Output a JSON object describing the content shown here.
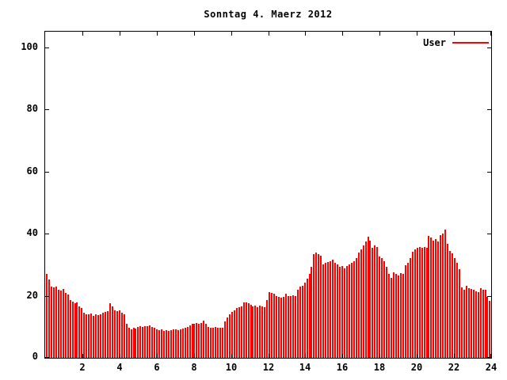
{
  "chart_data": {
    "type": "bar",
    "title": "Sonntag 4. Maerz 2012",
    "xlabel": "",
    "ylabel": "",
    "xlim": [
      0,
      24
    ],
    "ylim": [
      0,
      105
    ],
    "grid": false,
    "legend_position": "top-right",
    "background_color": "#ffffff",
    "axis_color": "#000000",
    "x_ticks": [
      2,
      4,
      6,
      8,
      10,
      12,
      14,
      16,
      18,
      20,
      22,
      24
    ],
    "x_tick_labels": [
      "2",
      "4",
      "6",
      "8",
      "10",
      "12",
      "14",
      "16",
      "18",
      "20",
      "22",
      "24"
    ],
    "y_ticks": [
      0,
      20,
      40,
      60,
      80,
      100
    ],
    "y_tick_labels": [
      "0",
      "20",
      "40",
      "60",
      "80",
      "100"
    ],
    "x_unit": "hour-of-day",
    "points_per_day": 190,
    "series": [
      {
        "name": "User",
        "color": "#ff0000",
        "values": [
          27.0,
          25.3,
          23.0,
          22.6,
          22.9,
          22.0,
          21.6,
          22.1,
          21.0,
          20.4,
          18.6,
          18.1,
          17.6,
          17.9,
          16.6,
          16.1,
          14.6,
          14.1,
          13.9,
          14.3,
          13.5,
          14.0,
          13.8,
          14.1,
          14.4,
          14.8,
          15.1,
          17.6,
          16.6,
          15.3,
          15.1,
          15.4,
          14.4,
          14.1,
          11.0,
          9.6,
          9.3,
          9.7,
          9.4,
          9.9,
          10.1,
          9.9,
          10.3,
          10.1,
          10.4,
          10.0,
          9.6,
          9.3,
          8.9,
          9.1,
          8.7,
          8.9,
          8.6,
          8.9,
          9.1,
          9.3,
          8.9,
          9.1,
          9.4,
          9.6,
          9.9,
          10.4,
          11.0,
          10.9,
          11.2,
          11.0,
          11.3,
          12.1,
          11.0,
          10.0,
          9.8,
          9.7,
          9.9,
          9.6,
          9.8,
          9.7,
          11.8,
          13.1,
          14.0,
          14.8,
          15.3,
          16.1,
          16.3,
          16.6,
          17.8,
          17.9,
          17.6,
          17.1,
          16.5,
          16.7,
          16.3,
          16.8,
          16.6,
          16.4,
          18.6,
          21.1,
          21.0,
          20.6,
          19.8,
          19.6,
          19.4,
          19.6,
          20.7,
          19.9,
          19.8,
          20.1,
          19.9,
          22.0,
          22.9,
          23.2,
          24.1,
          25.4,
          27.0,
          29.2,
          33.3,
          33.8,
          33.3,
          33.0,
          30.0,
          30.5,
          30.9,
          31.2,
          31.7,
          30.7,
          30.0,
          29.2,
          29.6,
          28.7,
          29.5,
          30.0,
          30.5,
          31.2,
          32.0,
          33.8,
          35.0,
          36.3,
          37.5,
          39.1,
          37.6,
          35.5,
          36.3,
          35.8,
          32.5,
          32.0,
          31.2,
          29.2,
          27.0,
          25.7,
          27.5,
          26.9,
          26.6,
          27.3,
          26.9,
          29.9,
          30.7,
          32.0,
          34.2,
          34.9,
          35.4,
          35.8,
          35.4,
          35.8,
          35.5,
          39.2,
          38.7,
          37.8,
          38.3,
          37.5,
          39.6,
          40.1,
          41.3,
          36.7,
          34.5,
          33.7,
          32.0,
          30.7,
          28.6,
          22.8,
          21.9,
          23.1,
          22.5,
          22.1,
          21.8,
          21.5,
          21.1,
          22.3,
          22.0,
          21.8,
          19.7,
          18.3
        ]
      }
    ]
  }
}
